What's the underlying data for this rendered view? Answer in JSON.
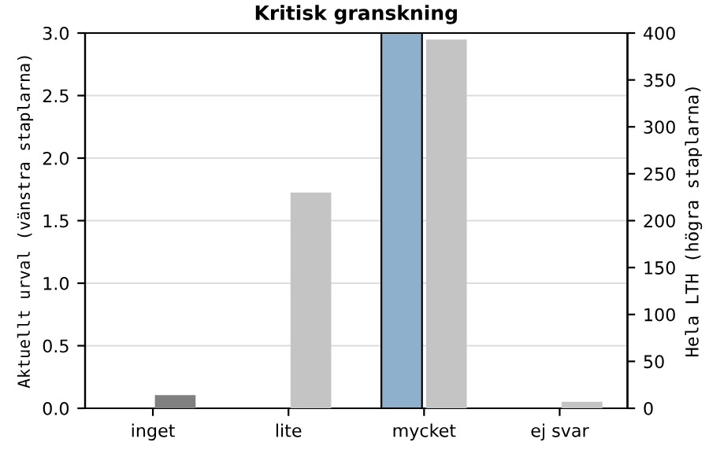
{
  "chart_data": {
    "type": "bar",
    "title": "Kritisk granskning",
    "ylabel": "Aktuellt urval (vänstra staplarna)",
    "y2label": "Hela LTH (högra staplarna)",
    "categories": [
      "inget",
      "lite",
      "mycket",
      "ej svar"
    ],
    "series": [
      {
        "axis": "y",
        "color": "#8fb0cc",
        "values": [
          null,
          null,
          3.0,
          null
        ]
      },
      {
        "axis": "y2",
        "colors": [
          "#808080",
          "#c4c4c4",
          "#c4c4c4",
          "#c4c4c4"
        ],
        "values": [
          14,
          230,
          393,
          7
        ]
      }
    ],
    "ylim": [
      0,
      3.0
    ],
    "yticks": [
      {
        "value": 0,
        "label": "0.0"
      },
      {
        "value": 0.5,
        "label": "0.5"
      },
      {
        "value": 1.0,
        "label": "1.0"
      },
      {
        "value": 1.5,
        "label": "1.5"
      },
      {
        "value": 2.0,
        "label": "2.0"
      },
      {
        "value": 2.5,
        "label": "2.5"
      },
      {
        "value": 3.0,
        "label": "3.0"
      }
    ],
    "y2lim": [
      0,
      400
    ],
    "y2ticks": [
      0,
      50,
      100,
      150,
      200,
      250,
      300,
      350,
      400
    ],
    "grid": "y",
    "legend": false
  }
}
